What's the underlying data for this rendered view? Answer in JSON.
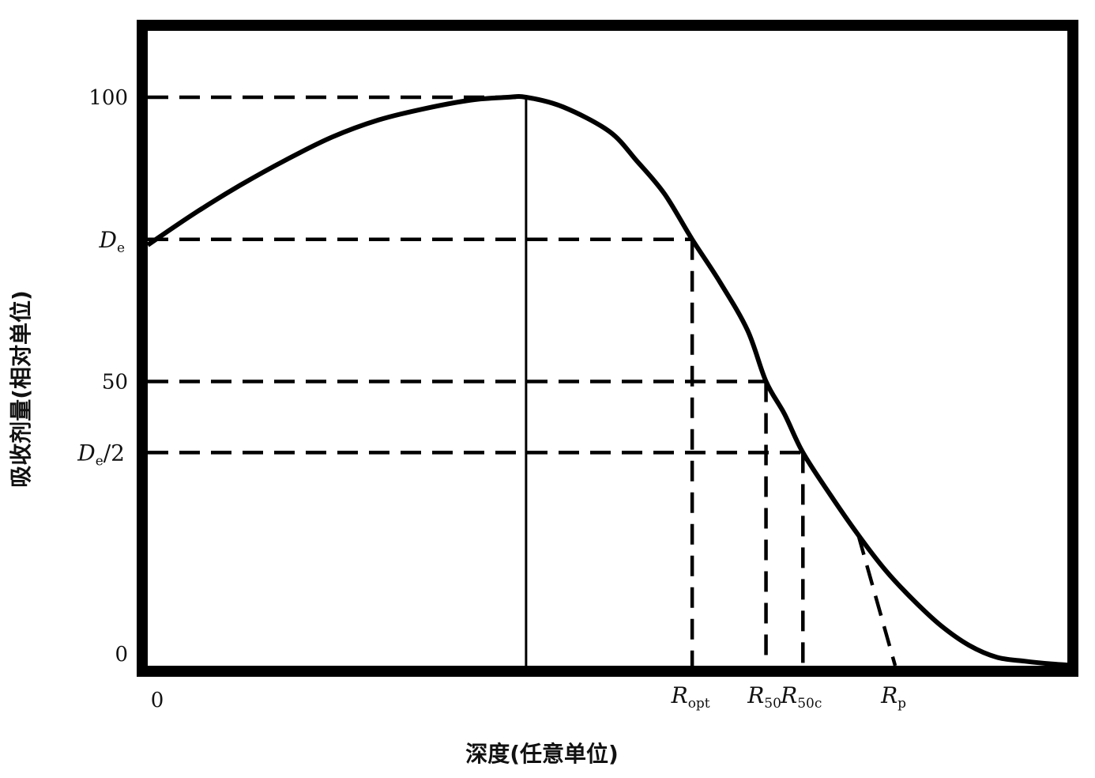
{
  "chart_data": {
    "type": "line",
    "title": "",
    "xlabel": "深度(任意单位)",
    "ylabel": "吸收剂量(相对单位)",
    "xlim": [
      0,
      100
    ],
    "ylim": [
      0,
      100
    ],
    "x_ticks": [
      {
        "value": 0,
        "label": "0"
      }
    ],
    "y_ticks": [
      {
        "value": 0,
        "label": "0"
      },
      {
        "value": 50,
        "label": "50"
      },
      {
        "value": 100,
        "label": "100"
      }
    ],
    "y_marks": [
      {
        "value": 75,
        "main": "D",
        "sub": "e",
        "suffix": ""
      },
      {
        "value": 37.5,
        "main": "D",
        "sub": "e",
        "suffix": "/2"
      }
    ],
    "x_marks": [
      {
        "value": 59,
        "main": "R",
        "sub": "opt"
      },
      {
        "value": 67,
        "main": "R",
        "sub": "50"
      },
      {
        "value": 71,
        "main": "R",
        "sub": "50c"
      },
      {
        "value": 81,
        "main": "R",
        "sub": "p"
      }
    ],
    "max_dose_depth": 41,
    "series": [
      {
        "x": [
          0,
          5,
          10,
          15,
          20,
          25,
          30,
          35,
          39,
          41,
          45,
          50,
          53,
          56,
          59,
          62,
          65,
          67,
          69,
          71,
          74,
          77,
          80,
          83,
          86,
          89,
          92,
          95,
          98,
          100
        ],
        "y": [
          74,
          79.5,
          84.5,
          89,
          93,
          96,
          98,
          99.5,
          100,
          100,
          98.3,
          94,
          88.8,
          83,
          75,
          67.5,
          59,
          50,
          44.3,
          37.5,
          30,
          23,
          16.7,
          11.5,
          7,
          3.6,
          1.5,
          0.8,
          0.3,
          0.1
        ]
      }
    ],
    "guides": {
      "horizontal_to_curve": [
        100,
        75,
        50,
        37.5
      ],
      "vertical_to_axis": [
        59,
        67,
        71
      ],
      "practical_range_tangent": {
        "from": [
          77,
          23
        ],
        "to": [
          81,
          0
        ]
      }
    },
    "grid": false,
    "legend": "none"
  }
}
